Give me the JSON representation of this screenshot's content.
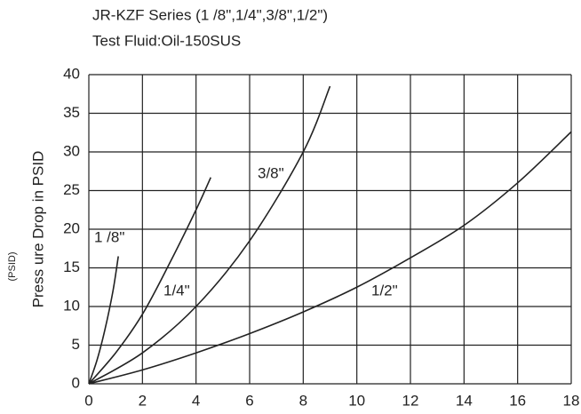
{
  "chart_data": {
    "type": "line",
    "title": "JR-KZF Series (1 /8\",1/4\",3/8\",1/2\")",
    "subtitle": "Test Fluid:Oil-150SUS",
    "y_label": "Press ure Drop in PSID",
    "y_unit": "(PSID)",
    "xlim": [
      0,
      18
    ],
    "xticks": [
      0,
      2,
      4,
      6,
      8,
      10,
      12,
      14,
      16,
      18
    ],
    "ylim": [
      0,
      40
    ],
    "yticks": [
      0,
      5,
      10,
      15,
      20,
      25,
      30,
      35,
      40
    ],
    "grid": true,
    "series": [
      {
        "name": "1 /8\"",
        "color": "#222222",
        "x": [
          0,
          0.3,
          0.6,
          0.9,
          1.1
        ],
        "values": [
          0,
          3,
          7,
          12,
          16.5
        ]
      },
      {
        "name": "1/4\"",
        "color": "#222222",
        "x": [
          0,
          1,
          2,
          3,
          4,
          4.55
        ],
        "values": [
          0,
          4,
          9,
          15.5,
          22.5,
          26.7
        ]
      },
      {
        "name": "3/8\"",
        "color": "#222222",
        "x": [
          0,
          2,
          4,
          6,
          8,
          9
        ],
        "values": [
          0,
          4,
          10,
          18.5,
          30,
          38.5
        ]
      },
      {
        "name": "1/2\"",
        "color": "#222222",
        "x": [
          0,
          2,
          4,
          6,
          8,
          10,
          12,
          14,
          16,
          18
        ],
        "values": [
          0,
          1.8,
          4,
          6.5,
          9.3,
          12.5,
          16.3,
          20.5,
          26,
          32.6
        ]
      }
    ]
  }
}
